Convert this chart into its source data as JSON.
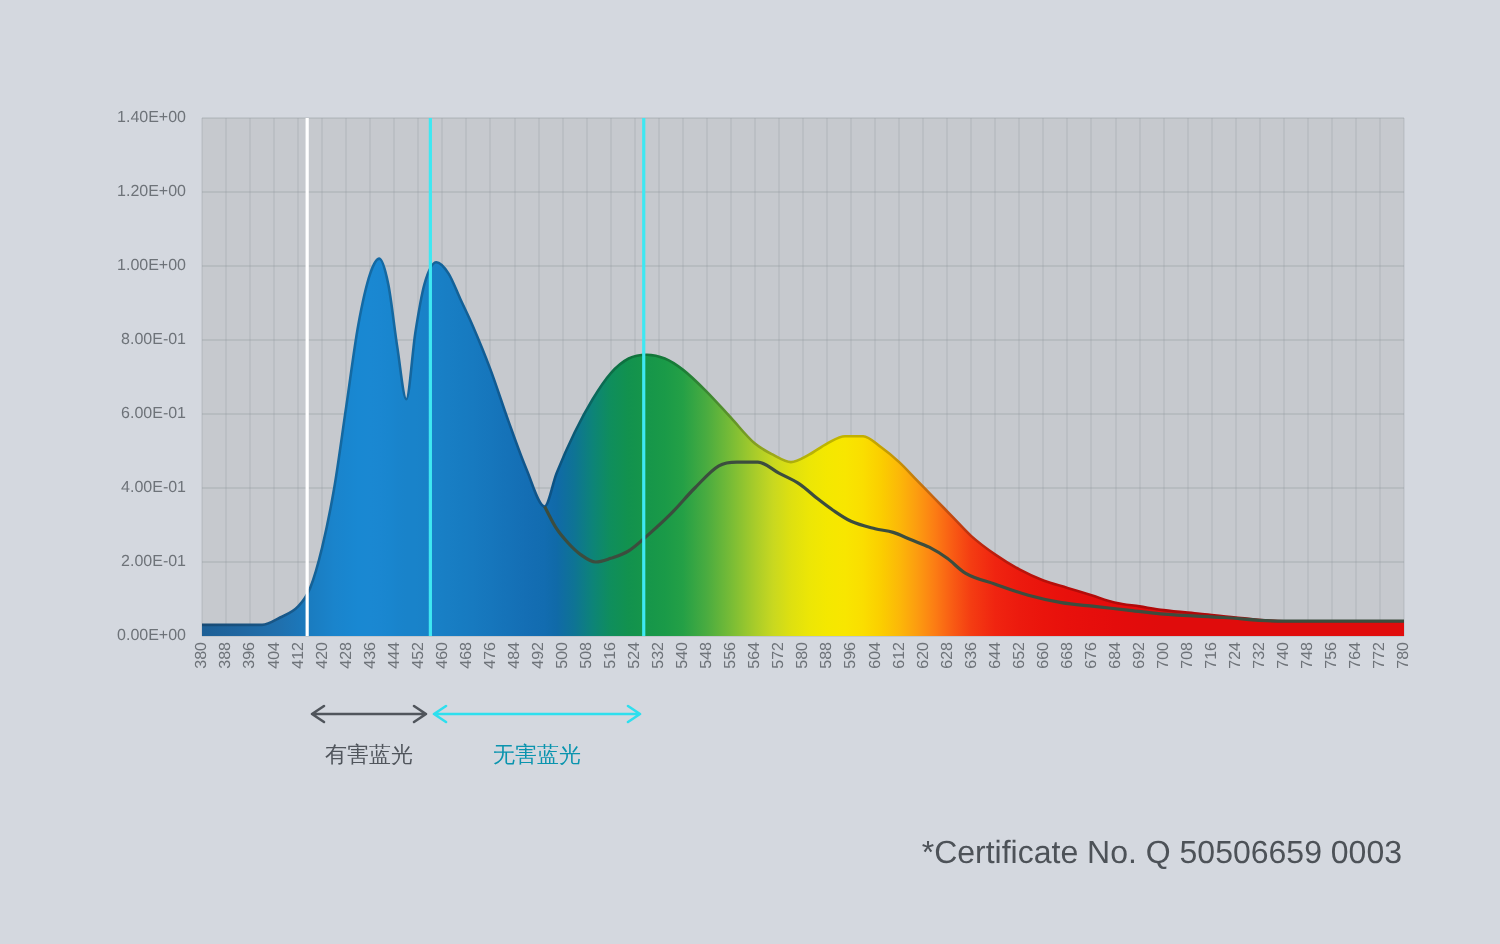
{
  "chart_data": {
    "type": "area",
    "xlim": [
      380,
      780
    ],
    "xticks": [
      380,
      388,
      396,
      404,
      412,
      420,
      428,
      436,
      444,
      452,
      460,
      468,
      476,
      484,
      492,
      500,
      508,
      516,
      524,
      532,
      540,
      548,
      556,
      564,
      572,
      580,
      588,
      596,
      604,
      612,
      620,
      628,
      636,
      644,
      652,
      660,
      668,
      676,
      684,
      692,
      700,
      708,
      716,
      724,
      732,
      740,
      748,
      756,
      764,
      772,
      780
    ],
    "ylim": [
      0,
      1.4
    ],
    "yticks": [
      {
        "value": 0,
        "label": "0.00E+00"
      },
      {
        "value": 0.2,
        "label": "2.00E-01"
      },
      {
        "value": 0.4,
        "label": "4.00E-01"
      },
      {
        "value": 0.6,
        "label": "6.00E-01"
      },
      {
        "value": 0.8,
        "label": "8.00E-01"
      },
      {
        "value": 1.0,
        "label": "1.00E+00"
      },
      {
        "value": 1.2,
        "label": "1.20E+00"
      },
      {
        "value": 1.4,
        "label": "1.40E+00"
      }
    ],
    "grid": true,
    "series": [
      {
        "x": [
          380,
          392,
          400,
          406,
          412,
          416,
          420,
          424,
          428,
          432,
          436,
          439,
          442,
          445,
          448,
          451,
          454,
          458,
          462,
          466,
          470,
          476,
          482,
          488,
          494,
          498,
          504,
          510,
          516,
          522,
          528,
          534,
          540,
          548,
          556,
          564,
          570,
          576,
          582,
          588,
          594,
          600,
          606,
          612,
          618,
          624,
          630,
          636,
          644,
          652,
          660,
          668,
          676,
          684,
          692,
          700,
          712,
          724,
          740,
          760,
          780
        ],
        "values": [
          0.03,
          0.03,
          0.03,
          0.05,
          0.08,
          0.13,
          0.24,
          0.4,
          0.62,
          0.84,
          0.98,
          1.02,
          0.95,
          0.78,
          0.64,
          0.82,
          0.95,
          1.01,
          0.98,
          0.91,
          0.84,
          0.72,
          0.58,
          0.45,
          0.35,
          0.44,
          0.55,
          0.64,
          0.71,
          0.75,
          0.76,
          0.75,
          0.72,
          0.66,
          0.59,
          0.52,
          0.49,
          0.47,
          0.49,
          0.52,
          0.54,
          0.54,
          0.51,
          0.47,
          0.42,
          0.37,
          0.32,
          0.27,
          0.22,
          0.18,
          0.15,
          0.13,
          0.11,
          0.09,
          0.08,
          0.07,
          0.06,
          0.05,
          0.04,
          0.04,
          0.04
        ],
        "colors": [
          "#1d5f96",
          "#1f66a0",
          "#1f6ca8",
          "#1f70ae",
          "#1c76b8",
          "#1a7cc0",
          "#1a80c6",
          "#1a84cc",
          "#1986cf",
          "#1988d2",
          "#1a88d2",
          "#1a87d1",
          "#1986cf",
          "#1984cc",
          "#1983ca",
          "#1983ca",
          "#1982c8",
          "#1880c6",
          "#187ec4",
          "#177cc2",
          "#177ac0",
          "#1676bc",
          "#1572b8",
          "#146eb4",
          "#126cb0",
          "#106aa8",
          "#0e7494",
          "#0d8478",
          "#0f8e5c",
          "#12924e",
          "#16964a",
          "#1a9a48",
          "#24a046",
          "#4aac40",
          "#78bc36",
          "#a8cc2a",
          "#c8d820",
          "#dee010",
          "#ece606",
          "#f4e800",
          "#f8e600",
          "#fade00",
          "#fbce00",
          "#fcb808",
          "#fc9c10",
          "#fc7c14",
          "#f85a14",
          "#f43c12",
          "#f02410",
          "#ec1a0e",
          "#ea140c",
          "#e8100c",
          "#e60e0c",
          "#e40c0c",
          "#e20c0c",
          "#e00c0c",
          "#e00c0c",
          "#e00c0c",
          "#e00c0c",
          "#e00c0c",
          "#e00c0c"
        ]
      },
      {
        "type": "line",
        "color": "#3c4d3e",
        "x": [
          494,
          498,
          502,
          506,
          511,
          516,
          522,
          528,
          536,
          544,
          552,
          558,
          565,
          572,
          579,
          585,
          590,
          596,
          604,
          610,
          616,
          622,
          628,
          634,
          644,
          655,
          666,
          677,
          688,
          699,
          720,
          740,
          760,
          780
        ],
        "values": [
          0.35,
          0.29,
          0.25,
          0.22,
          0.2,
          0.21,
          0.23,
          0.27,
          0.33,
          0.4,
          0.46,
          0.47,
          0.47,
          0.44,
          0.41,
          0.37,
          0.34,
          0.31,
          0.29,
          0.28,
          0.26,
          0.24,
          0.21,
          0.17,
          0.14,
          0.11,
          0.09,
          0.08,
          0.07,
          0.06,
          0.05,
          0.04,
          0.04,
          0.04
        ]
      }
    ],
    "ref_lines": [
      {
        "axis": "x",
        "value": 415,
        "color": "#ffffff"
      },
      {
        "axis": "x",
        "value": 456,
        "color": "#3ee8f2"
      },
      {
        "axis": "x",
        "value": 527,
        "color": "#3ee8f2"
      }
    ],
    "annotations": [
      "有害蓝光",
      "无害蓝光",
      "*Certificate No. Q 50506659 0003"
    ]
  }
}
